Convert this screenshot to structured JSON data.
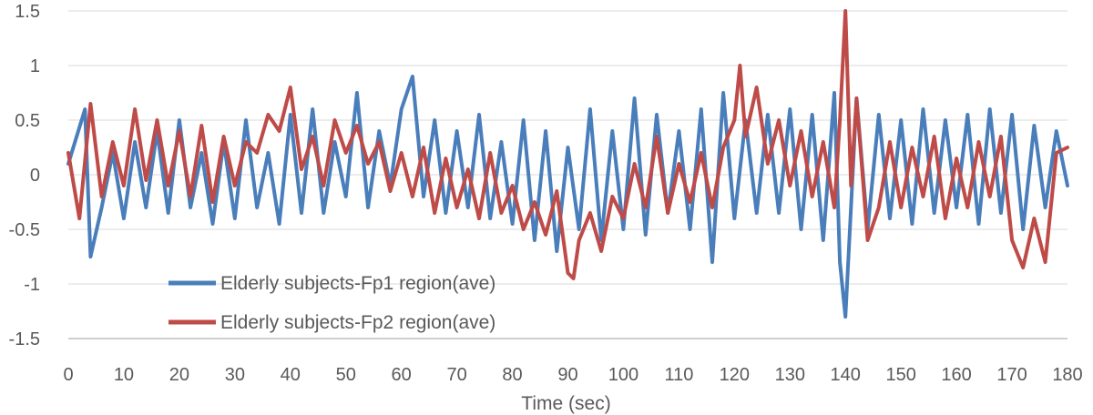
{
  "chart_data": {
    "type": "line",
    "title": "",
    "xlabel": "Time (sec)",
    "ylabel": "",
    "xlim": [
      0,
      180
    ],
    "ylim": [
      -1.5,
      1.5
    ],
    "xticks": [
      "0",
      "10",
      "20",
      "30",
      "40",
      "50",
      "60",
      "70",
      "80",
      "90",
      "100",
      "110",
      "120",
      "130",
      "140",
      "150",
      "160",
      "170",
      "180"
    ],
    "yticks": [
      "1.5",
      "1",
      "0.5",
      "0",
      "-0.5",
      "-1",
      "-1.5"
    ],
    "grid": "horizontal",
    "legend_position": "bottom-left",
    "series": [
      {
        "name": "Elderly subjects-Fp1 region(ave)",
        "color": "#4a7ebb",
        "x": [
          0,
          3,
          4,
          6,
          8,
          10,
          12,
          14,
          16,
          18,
          20,
          22,
          24,
          26,
          28,
          30,
          32,
          34,
          36,
          38,
          40,
          42,
          44,
          46,
          48,
          50,
          52,
          54,
          56,
          58,
          60,
          62,
          64,
          66,
          68,
          70,
          72,
          74,
          76,
          78,
          80,
          82,
          84,
          86,
          88,
          90,
          92,
          94,
          96,
          98,
          100,
          102,
          104,
          106,
          108,
          110,
          112,
          114,
          116,
          118,
          120,
          122,
          124,
          126,
          128,
          130,
          132,
          134,
          136,
          138,
          139,
          140,
          142,
          144,
          146,
          148,
          150,
          152,
          154,
          156,
          158,
          160,
          162,
          164,
          166,
          168,
          170,
          172,
          174,
          176,
          178,
          180
        ],
        "values": [
          0.1,
          0.6,
          -0.75,
          -0.3,
          0.2,
          -0.4,
          0.3,
          -0.3,
          0.4,
          -0.35,
          0.5,
          -0.3,
          0.2,
          -0.45,
          0.3,
          -0.4,
          0.5,
          -0.3,
          0.2,
          -0.45,
          0.55,
          -0.35,
          0.6,
          -0.35,
          0.3,
          -0.2,
          0.75,
          -0.3,
          0.4,
          -0.1,
          0.6,
          0.9,
          -0.2,
          0.5,
          -0.35,
          0.4,
          -0.3,
          0.55,
          -0.4,
          0.3,
          -0.45,
          0.5,
          -0.6,
          0.4,
          -0.7,
          0.25,
          -0.5,
          0.6,
          -0.6,
          0.4,
          -0.5,
          0.7,
          -0.55,
          0.55,
          -0.35,
          0.4,
          -0.5,
          0.6,
          -0.8,
          0.75,
          -0.4,
          0.5,
          -0.35,
          0.55,
          -0.35,
          0.6,
          -0.5,
          0.55,
          -0.6,
          0.75,
          -0.8,
          -1.3,
          0.7,
          -0.5,
          0.55,
          -0.4,
          0.5,
          -0.45,
          0.6,
          -0.35,
          0.5,
          -0.3,
          0.55,
          -0.45,
          0.6,
          -0.35,
          0.55,
          -0.5,
          0.45,
          -0.3,
          0.4,
          -0.1
        ]
      },
      {
        "name": "Elderly subjects-Fp2 region(ave)",
        "color": "#be4b48",
        "x": [
          0,
          2,
          4,
          6,
          8,
          10,
          12,
          14,
          16,
          18,
          20,
          22,
          24,
          26,
          28,
          30,
          32,
          34,
          36,
          38,
          40,
          42,
          44,
          46,
          48,
          50,
          52,
          54,
          56,
          58,
          60,
          62,
          64,
          66,
          68,
          70,
          72,
          74,
          76,
          78,
          80,
          82,
          84,
          86,
          88,
          90,
          91,
          92,
          94,
          96,
          98,
          100,
          102,
          104,
          106,
          108,
          110,
          112,
          114,
          116,
          118,
          120,
          121,
          122,
          124,
          126,
          128,
          130,
          132,
          134,
          136,
          138,
          139,
          140,
          141,
          142,
          144,
          146,
          148,
          150,
          152,
          154,
          156,
          158,
          160,
          162,
          164,
          166,
          168,
          170,
          172,
          174,
          176,
          178,
          180
        ],
        "values": [
          0.2,
          -0.4,
          0.65,
          -0.2,
          0.3,
          -0.1,
          0.6,
          -0.05,
          0.5,
          -0.1,
          0.4,
          -0.2,
          0.45,
          -0.25,
          0.35,
          -0.1,
          0.3,
          0.2,
          0.55,
          0.4,
          0.8,
          0.05,
          0.35,
          -0.1,
          0.5,
          0.2,
          0.45,
          0.1,
          0.3,
          -0.15,
          0.2,
          -0.2,
          0.25,
          -0.35,
          0.15,
          -0.3,
          0.05,
          -0.4,
          0.2,
          -0.35,
          -0.1,
          -0.5,
          -0.25,
          -0.55,
          -0.15,
          -0.9,
          -0.95,
          -0.6,
          -0.35,
          -0.7,
          -0.2,
          -0.4,
          0.1,
          -0.3,
          0.35,
          -0.35,
          0.1,
          -0.25,
          0.2,
          -0.3,
          0.25,
          0.5,
          1.0,
          0.35,
          0.8,
          0.1,
          0.5,
          -0.1,
          0.4,
          -0.2,
          0.3,
          -0.3,
          0.5,
          1.5,
          -0.1,
          0.7,
          -0.6,
          -0.3,
          0.3,
          -0.3,
          0.25,
          -0.2,
          0.35,
          -0.4,
          0.15,
          -0.3,
          0.3,
          -0.2,
          0.35,
          -0.6,
          -0.85,
          -0.4,
          -0.8,
          0.2,
          0.25
        ]
      }
    ]
  }
}
